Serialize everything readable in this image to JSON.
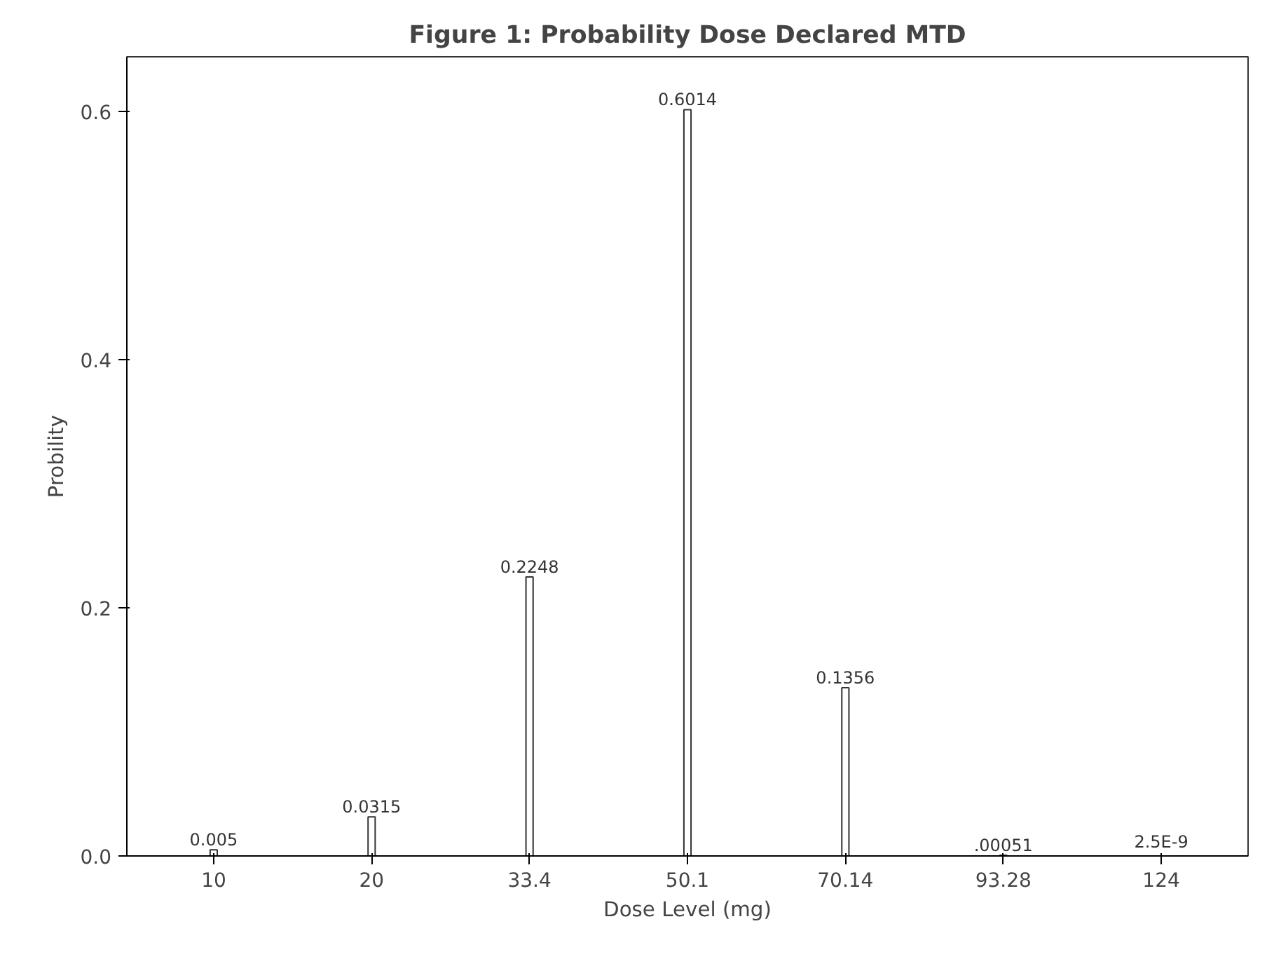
{
  "chart_data": {
    "type": "bar",
    "title": "Figure 1: Probability Dose Declared MTD",
    "xlabel": "Dose Level (mg)",
    "ylabel": "Probility",
    "categories": [
      "10",
      "20",
      "33.4",
      "50.1",
      "70.14",
      "93.28",
      "124"
    ],
    "values": [
      0.005,
      0.0315,
      0.2248,
      0.6014,
      0.1356,
      0.00051,
      2.5e-09
    ],
    "value_labels": [
      "0.005",
      "0.0315",
      "0.2248",
      "0.6014",
      "0.1356",
      ".00051",
      "2.5E-9"
    ],
    "color": "#333333",
    "ylim": [
      0,
      0.644
    ],
    "yticks": [
      {
        "value": 0,
        "label": "0.0"
      },
      {
        "value": 0.2,
        "label": "0.2"
      },
      {
        "value": 0.4,
        "label": "0.4"
      },
      {
        "value": 0.6,
        "label": "0.6"
      }
    ],
    "grid": false
  }
}
